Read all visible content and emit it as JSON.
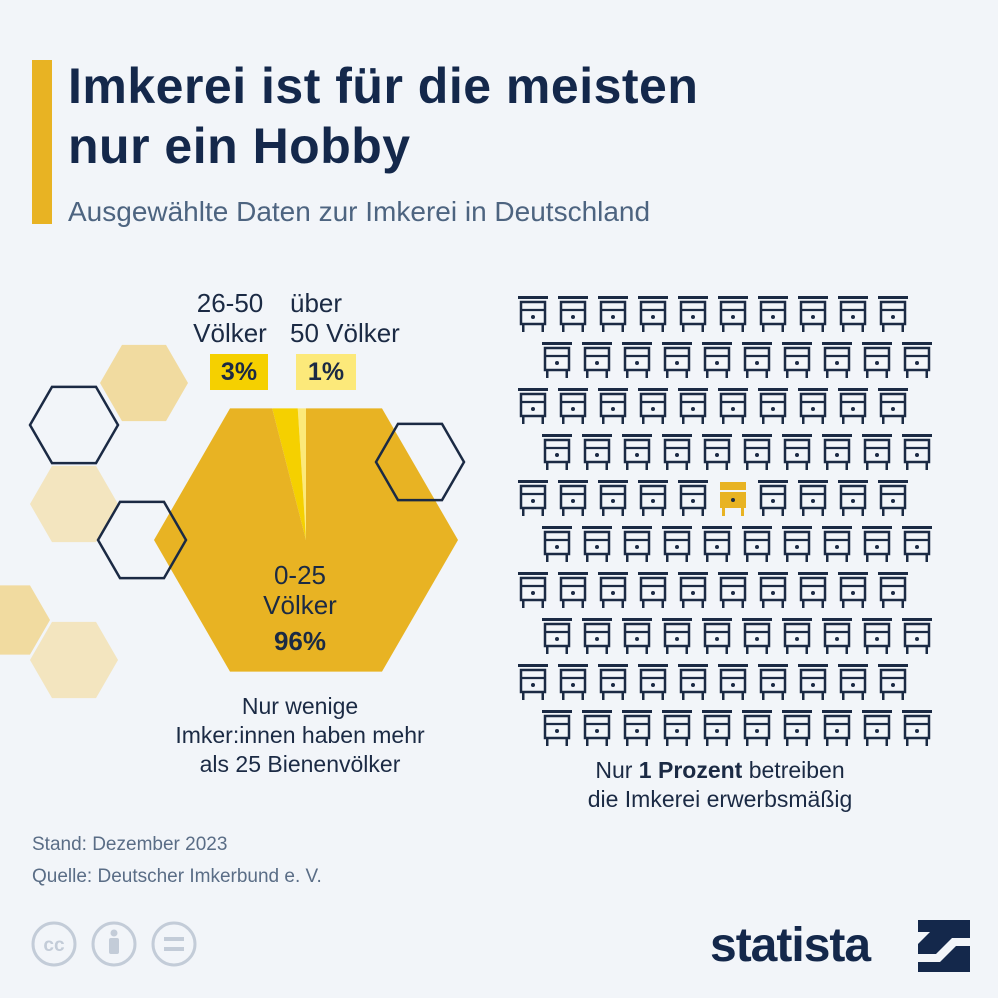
{
  "header": {
    "title_line1": "Imkerei ist für die meisten",
    "title_line2": "nur ein Hobby",
    "subtitle": "Ausgewählte Daten zur Imkerei in Deutschland"
  },
  "chart_data": [
    {
      "type": "pie",
      "categories": [
        "0-25 Völker",
        "26-50 Völker",
        "über 50 Völker"
      ],
      "values": [
        96,
        3,
        1
      ],
      "unit": "%",
      "labels": {
        "small": {
          "line1": "0-25",
          "line2": "Völker",
          "value": "96%"
        },
        "medium": {
          "line1": "26-50",
          "line2": "Völker",
          "value": "3%"
        },
        "large": {
          "line1": "über",
          "line2": "50 Völker",
          "value": "1%"
        }
      },
      "colors": {
        "small": "#e8b323",
        "medium": "#f5d000",
        "large": "#fce97a"
      },
      "caption": [
        "Nur wenige",
        "Imker:innen haben mehr",
        "als 25 Bienenvölker"
      ]
    },
    {
      "type": "pictogram",
      "total": 100,
      "highlighted": 1,
      "icon": "beehive-icon",
      "caption_line1_pre": "Nur ",
      "caption_line1_bold": "1 Prozent",
      "caption_line1_post": " betreiben",
      "caption_line2": "die Imkerei erwerbsmäßig",
      "colors": {
        "default": "#1b2a44",
        "highlight": "#e8b323"
      }
    }
  ],
  "footer": {
    "stand": "Stand: Dezember 2023",
    "quelle": "Quelle: Deutscher Imkerbund e. V."
  },
  "license_icons": [
    "cc-icon",
    "attribution-icon",
    "no-derivatives-icon"
  ],
  "brand": {
    "name": "statista"
  },
  "colors": {
    "accent": "#e8b323",
    "navy": "#14284b",
    "background": "#f2f5f9"
  }
}
